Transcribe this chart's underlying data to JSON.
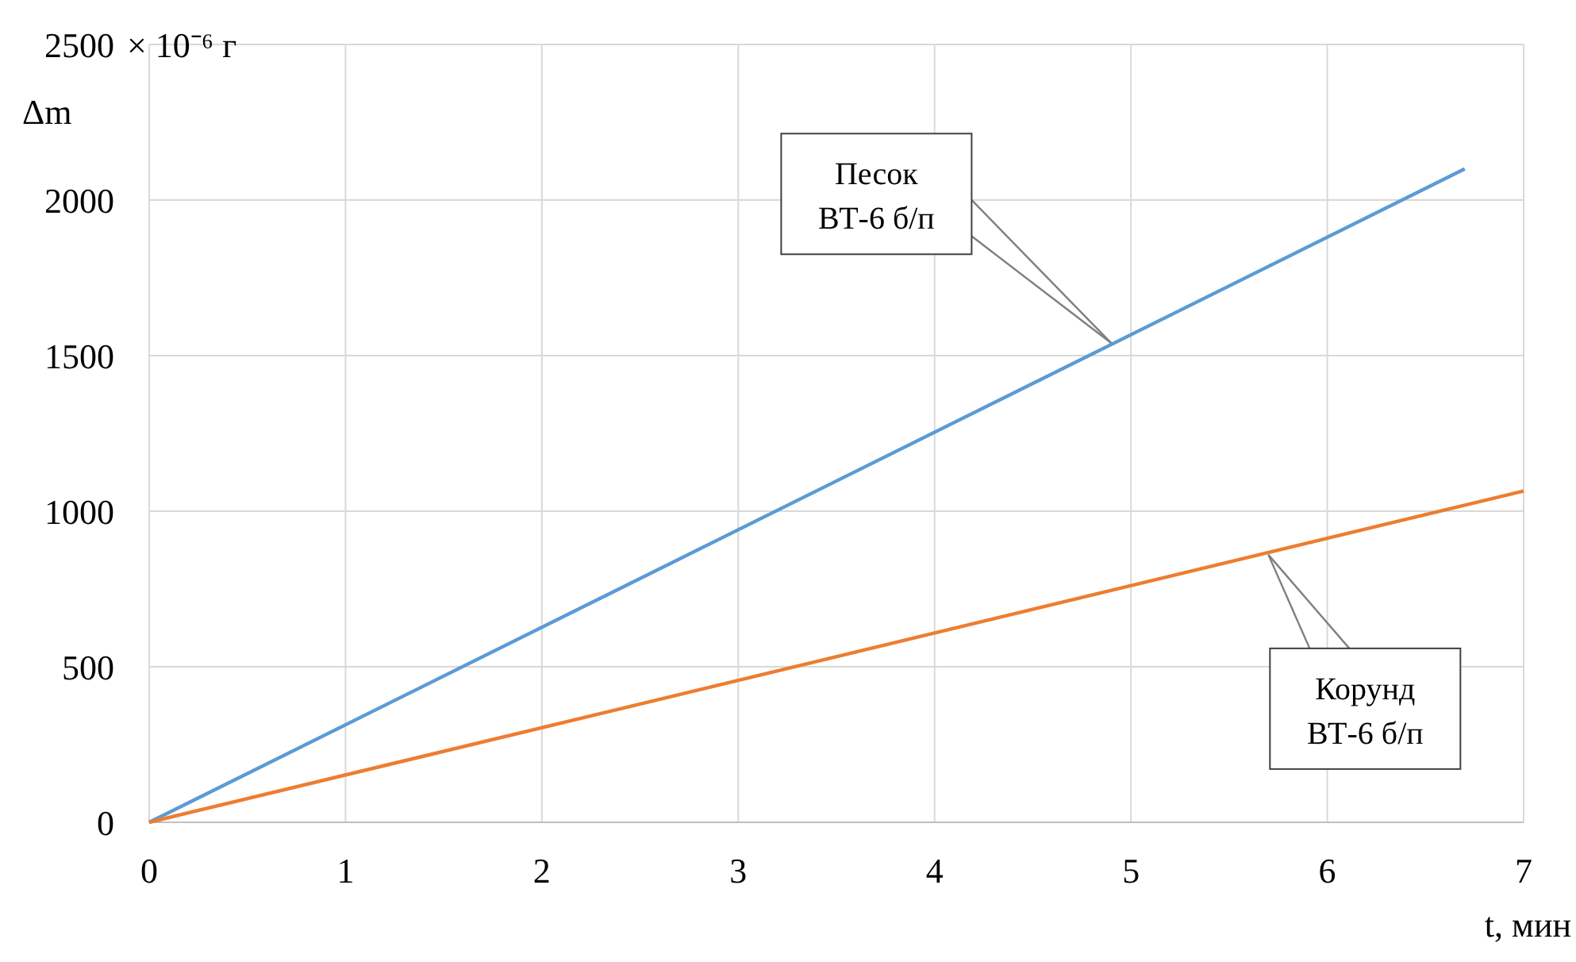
{
  "chart_data": {
    "type": "line",
    "ylabel": "Δm",
    "xlabel": "t, мин",
    "x": [
      0,
      6.7
    ],
    "series": [
      {
        "color": "#5b9bd5",
        "values": [
          0,
          2100
        ]
      },
      {
        "color": "#ed7d31",
        "x": [
          0,
          7
        ],
        "values": [
          0,
          1065
        ]
      }
    ],
    "xlim": [
      0,
      7
    ],
    "xticks": [
      0,
      1,
      2,
      3,
      4,
      5,
      6,
      7
    ],
    "ylim": [
      0,
      2500
    ],
    "yticks": [
      0,
      500,
      1000,
      1500,
      2000,
      2500
    ],
    "grid": true,
    "marker": "none",
    "line_style": "solid",
    "annotations": [
      "× 10⁻⁶ г",
      {
        "text": "Песок ВТ-6 б/п",
        "x": 4.9,
        "y": 1540
      },
      {
        "text": "Корунд ВТ-6 б/п",
        "x": 5.7,
        "y": 860
      }
    ]
  }
}
